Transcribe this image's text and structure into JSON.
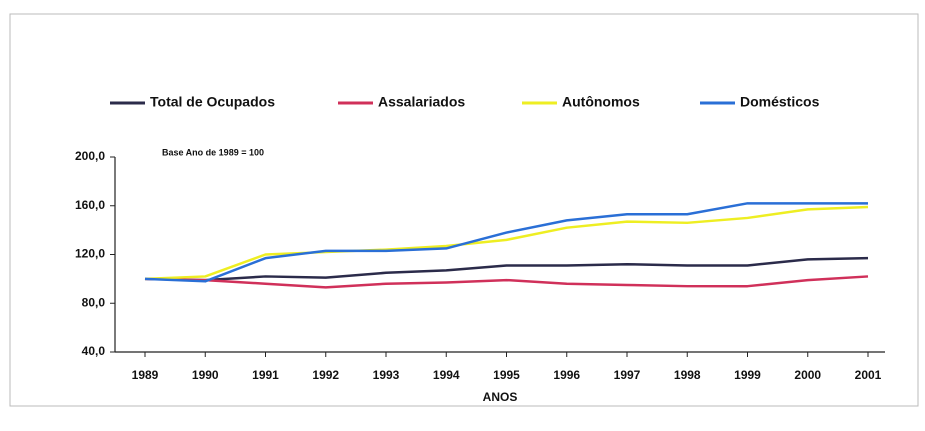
{
  "chart_data": {
    "type": "line",
    "annotation": "Base Ano de 1989 = 100",
    "x_label": "ANOS",
    "categories": [
      "1989",
      "1990",
      "1991",
      "1992",
      "1993",
      "1994",
      "1995",
      "1996",
      "1997",
      "1998",
      "1999",
      "2000",
      "2001"
    ],
    "series": [
      {
        "name": "Total de Ocupados",
        "color": "#2b2b4a",
        "values": [
          100,
          99,
          102,
          101,
          105,
          107,
          111,
          111,
          112,
          111,
          111,
          116,
          117
        ]
      },
      {
        "name": "Assalariados",
        "color": "#d0305a",
        "values": [
          100,
          99,
          96,
          93,
          96,
          97,
          99,
          96,
          95,
          94,
          94,
          99,
          102
        ]
      },
      {
        "name": "Autônomos",
        "color": "#eeee22",
        "values": [
          100,
          102,
          120,
          122,
          124,
          127,
          132,
          142,
          147,
          146,
          150,
          157,
          159
        ]
      },
      {
        "name": "Domésticos",
        "color": "#2a6fd6",
        "values": [
          100,
          98,
          117,
          123,
          123,
          125,
          138,
          148,
          153,
          153,
          162,
          162,
          162
        ]
      }
    ],
    "ylim": [
      40,
      200
    ],
    "yticks": [
      {
        "value": 40,
        "label": "40,0"
      },
      {
        "value": 80,
        "label": "80,0"
      },
      {
        "value": 120,
        "label": "120,0"
      },
      {
        "value": 160,
        "label": "160,0"
      },
      {
        "value": 200,
        "label": "200,0"
      }
    ],
    "legend": "top",
    "grid": false
  }
}
